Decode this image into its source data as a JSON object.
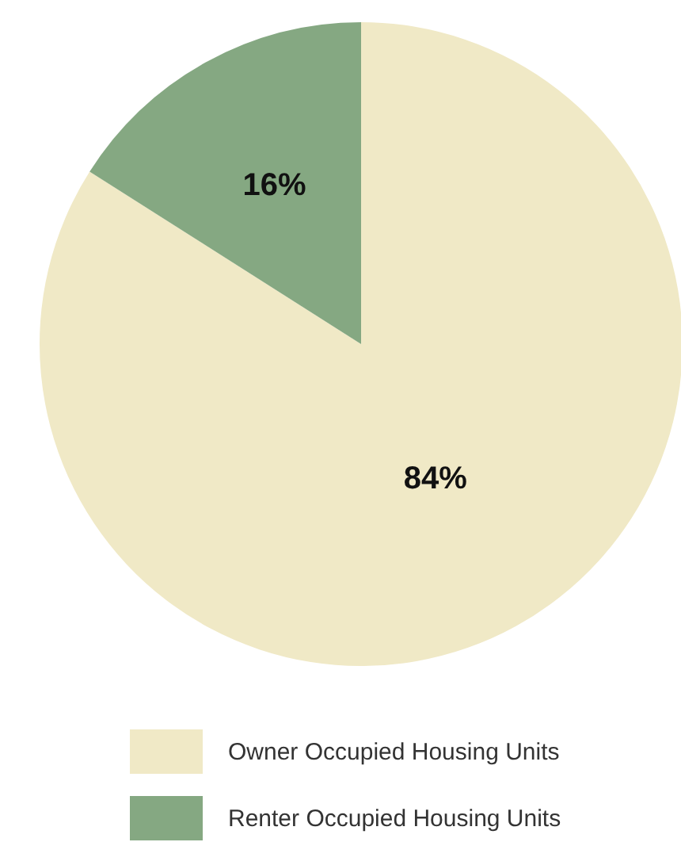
{
  "chart_data": {
    "type": "pie",
    "categories": [
      "Owner Occupied Housing Units",
      "Renter Occupied Housing Units"
    ],
    "values": [
      84,
      16
    ],
    "colors": [
      "#f0e9c6",
      "#85a882"
    ],
    "value_labels": [
      "84%",
      "16%"
    ],
    "legend": "bottom"
  }
}
